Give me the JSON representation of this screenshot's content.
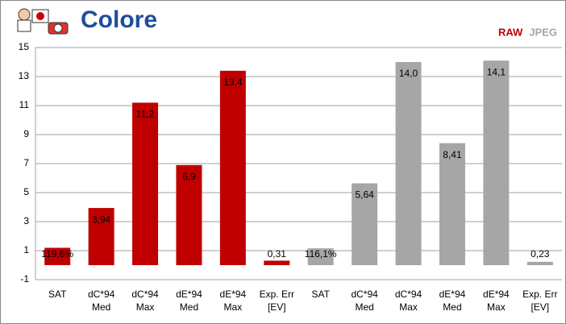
{
  "chart_data": {
    "type": "bar",
    "title": "Colore",
    "categories": [
      [
        "SAT"
      ],
      [
        "dC*94",
        "Med"
      ],
      [
        "dC*94",
        "Max"
      ],
      [
        "dE*94",
        "Med"
      ],
      [
        "dE*94",
        "Max"
      ],
      [
        "Exp. Err",
        "[EV]"
      ],
      [
        "SAT"
      ],
      [
        "dC*94",
        "Med"
      ],
      [
        "dC*94",
        "Max"
      ],
      [
        "dE*94",
        "Med"
      ],
      [
        "dE*94",
        "Max"
      ],
      [
        "Exp. Err",
        "[EV]"
      ]
    ],
    "series": [
      {
        "name": "RAW",
        "color": "#c00000",
        "values": [
          1.196,
          3.94,
          11.2,
          6.9,
          13.4,
          0.31,
          null,
          null,
          null,
          null,
          null,
          null
        ],
        "value_labels": [
          "119,6%",
          "3,94",
          "11,2",
          "6,9",
          "13,4",
          "0,31",
          null,
          null,
          null,
          null,
          null,
          null
        ]
      },
      {
        "name": "JPEG",
        "color": "#a6a6a6",
        "values": [
          null,
          null,
          null,
          null,
          null,
          null,
          1.161,
          5.64,
          14.0,
          8.41,
          14.1,
          0.23
        ],
        "value_labels": [
          null,
          null,
          null,
          null,
          null,
          null,
          "116,1%",
          "5,64",
          "14,0",
          "8,41",
          "14,1",
          "0,23"
        ]
      }
    ],
    "ylim": [
      -1,
      15
    ],
    "yticks": [
      -1,
      1,
      3,
      5,
      7,
      9,
      11,
      13,
      15
    ],
    "grid": true,
    "legend": "top-right"
  }
}
